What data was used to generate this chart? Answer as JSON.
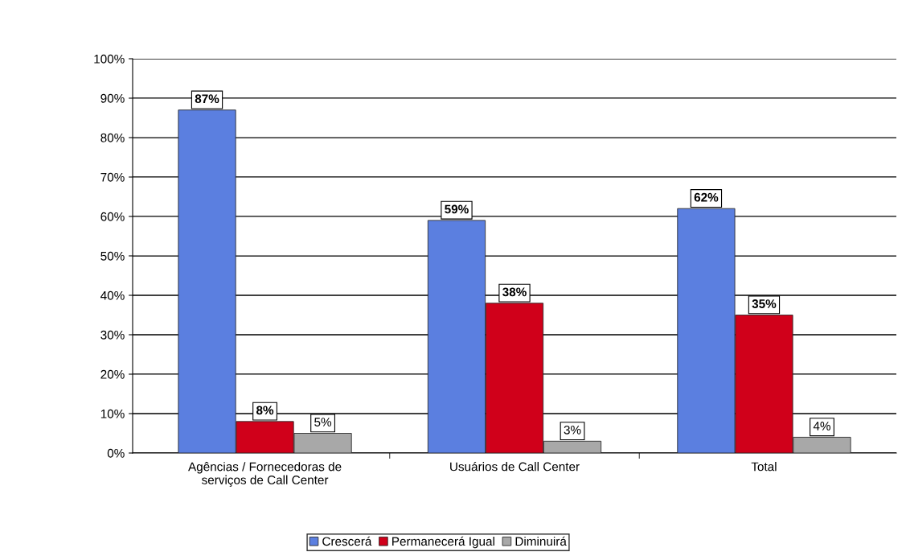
{
  "chart_data": {
    "type": "bar",
    "categories": [
      "Agências / Fornecedoras de\nserviços de Call Center",
      "Usuários de Call Center",
      "Total"
    ],
    "series": [
      {
        "name": "Crescerá",
        "color": "#5b7fe0",
        "values": [
          87,
          59,
          62
        ]
      },
      {
        "name": "Permanecerá Igual",
        "color": "#d0001a",
        "values": [
          8,
          38,
          35
        ]
      },
      {
        "name": "Diminuirá",
        "color": "#a8a8a8",
        "values": [
          5,
          3,
          4
        ]
      }
    ],
    "ylim": [
      0,
      100
    ],
    "yticks": [
      {
        "value": 0,
        "label": "0%"
      },
      {
        "value": 10,
        "label": "10%"
      },
      {
        "value": 20,
        "label": "20%"
      },
      {
        "value": 30,
        "label": "30%"
      },
      {
        "value": 40,
        "label": "40%"
      },
      {
        "value": 50,
        "label": "50%"
      },
      {
        "value": 60,
        "label": "60%"
      },
      {
        "value": 70,
        "label": "70%"
      },
      {
        "value": 80,
        "label": "80%"
      },
      {
        "value": 90,
        "label": "90%"
      },
      {
        "value": 100,
        "label": "100%"
      }
    ],
    "value_labels": [
      [
        "87%",
        "59%",
        "62%"
      ],
      [
        "8%",
        "38%",
        "35%"
      ],
      [
        "5%",
        "3%",
        "4%"
      ]
    ],
    "grid": "y",
    "legend": "bottom"
  }
}
